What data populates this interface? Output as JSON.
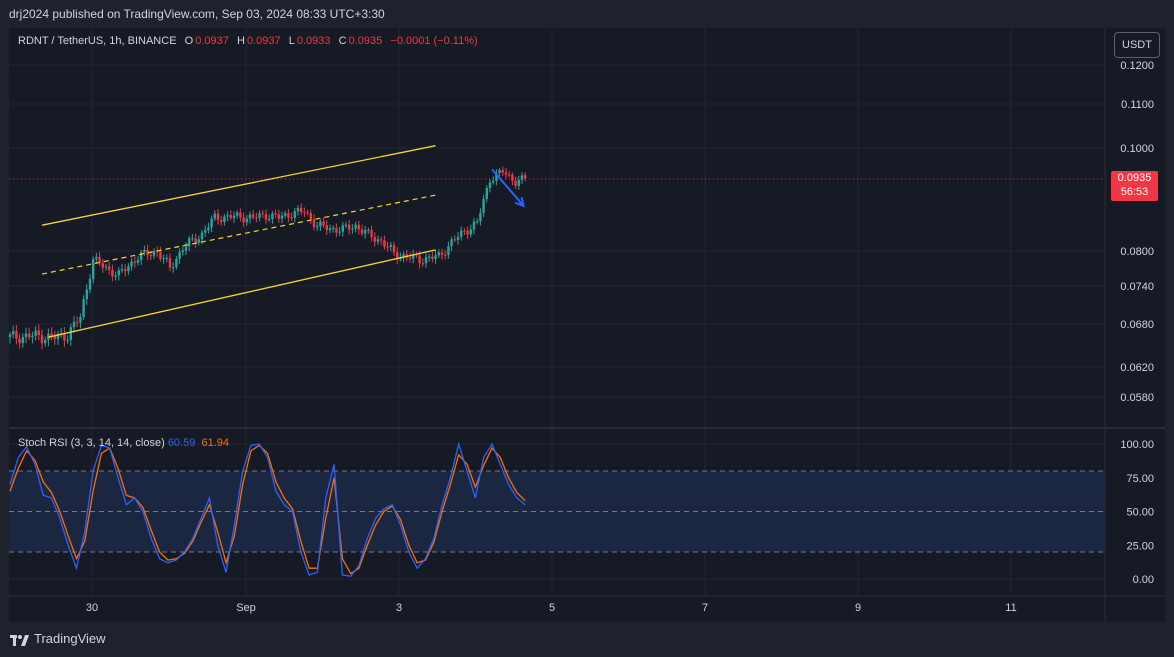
{
  "header": {
    "published": "drj2024 published on TradingView.com, Sep 03, 2024 08:33 UTC+3:30"
  },
  "legend": {
    "symbol": "RDNT / TetherUS, 1h, BINANCE",
    "o_label": "O",
    "o_value": "0.0937",
    "h_label": "H",
    "h_value": "0.0937",
    "l_label": "L",
    "l_value": "0.0933",
    "c_label": "C",
    "c_value": "0.0935",
    "change": "−0.0001 (−0.11%)"
  },
  "currency_button": "USDT",
  "last_price": {
    "price": "0.0935",
    "countdown": "56:53"
  },
  "rsi_legend": {
    "name": "Stoch RSI (3, 3, 14, 14, close)",
    "k_value": "60.59",
    "d_value": "61.94"
  },
  "footer": {
    "brand": "TradingView"
  },
  "colors": {
    "up": "#26a69a",
    "down": "#f23645",
    "channel": "#f5d33a",
    "k_line": "#2962ff",
    "d_line": "#ff6d00",
    "arrow": "#2962ff"
  },
  "chart_data": [
    {
      "type": "candlestick",
      "title": "RDNT / TetherUS, 1h, BINANCE",
      "y_ticks": [
        "0.1200",
        "0.1100",
        "0.1000",
        "0.0800",
        "0.0740",
        "0.0680",
        "0.0620",
        "0.0580"
      ],
      "x_ticks": [
        "30",
        "Sep",
        "3",
        "5",
        "7",
        "9",
        "11"
      ],
      "last_price": 0.0935,
      "price_path": [
        [
          0,
          0.0661
        ],
        [
          8,
          0.0663
        ],
        [
          14,
          0.066
        ],
        [
          18,
          0.0665
        ],
        [
          22,
          0.069
        ],
        [
          26,
          0.0785
        ],
        [
          30,
          0.077
        ],
        [
          34,
          0.0758
        ],
        [
          40,
          0.079
        ],
        [
          46,
          0.08
        ],
        [
          50,
          0.077
        ],
        [
          54,
          0.0805
        ],
        [
          60,
          0.083
        ],
        [
          64,
          0.086
        ],
        [
          70,
          0.0862
        ],
        [
          76,
          0.086
        ],
        [
          80,
          0.0865
        ],
        [
          84,
          0.086
        ],
        [
          88,
          0.0868
        ],
        [
          92,
          0.0872
        ],
        [
          96,
          0.0845
        ],
        [
          100,
          0.084
        ],
        [
          104,
          0.0838
        ],
        [
          108,
          0.0845
        ],
        [
          112,
          0.0828
        ],
        [
          116,
          0.0818
        ],
        [
          120,
          0.0795
        ],
        [
          124,
          0.079
        ],
        [
          128,
          0.0785
        ],
        [
          134,
          0.079
        ],
        [
          138,
          0.0815
        ],
        [
          142,
          0.0835
        ],
        [
          146,
          0.085
        ],
        [
          150,
          0.0935
        ],
        [
          154,
          0.095
        ],
        [
          158,
          0.093
        ],
        [
          161,
          0.0935
        ]
      ],
      "channel": {
        "upper": [
          [
            10,
            0.0846
          ],
          [
            133,
            0.1005
          ]
        ],
        "middle": [
          [
            10,
            0.076
          ],
          [
            133,
            0.0903
          ]
        ],
        "lower": [
          [
            12,
            0.0661
          ],
          [
            133,
            0.0802
          ]
        ]
      },
      "annotation_arrow": [
        [
          150,
          0.0955
        ],
        [
          158,
          0.0882
        ]
      ]
    },
    {
      "type": "line",
      "title": "Stoch RSI (3, 3, 14, 14, close)",
      "y_ticks": [
        "100.00",
        "75.00",
        "50.00",
        "25.00",
        "0.00"
      ],
      "bands": {
        "upper": 80,
        "middle": 50,
        "lower": 20
      },
      "series": [
        {
          "name": "K",
          "values": [
            70,
            90,
            98,
            85,
            62,
            60,
            45,
            25,
            8,
            35,
            80,
            99,
            97,
            75,
            55,
            60,
            50,
            30,
            15,
            12,
            14,
            20,
            30,
            45,
            60,
            25,
            5,
            40,
            80,
            99,
            100,
            90,
            65,
            55,
            50,
            20,
            3,
            5,
            60,
            85,
            3,
            2,
            10,
            30,
            45,
            52,
            55,
            40,
            20,
            8,
            15,
            30,
            55,
            75,
            100,
            80,
            60,
            90,
            100,
            85,
            70,
            60,
            55
          ]
        },
        {
          "name": "D",
          "values": [
            65,
            82,
            95,
            88,
            72,
            64,
            50,
            32,
            15,
            28,
            65,
            93,
            97,
            82,
            62,
            60,
            53,
            36,
            20,
            14,
            15,
            19,
            28,
            42,
            55,
            35,
            12,
            32,
            70,
            95,
            99,
            93,
            72,
            60,
            52,
            28,
            8,
            8,
            45,
            75,
            15,
            4,
            8,
            25,
            40,
            50,
            54,
            44,
            25,
            12,
            14,
            27,
            50,
            70,
            92,
            85,
            68,
            84,
            97,
            90,
            75,
            64,
            58
          ]
        }
      ]
    }
  ]
}
